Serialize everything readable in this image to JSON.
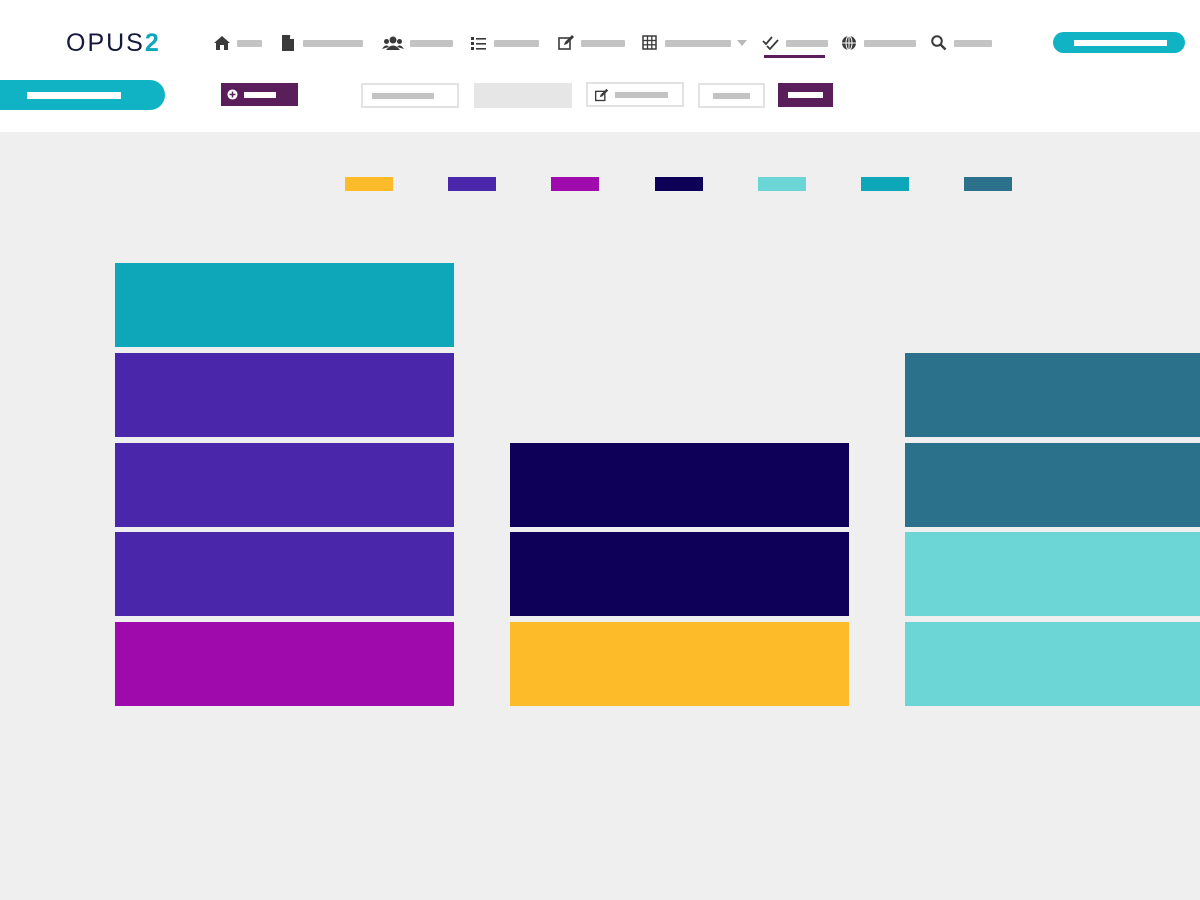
{
  "app": {
    "logo_text": "OPUS",
    "logo_suffix": "2"
  },
  "nav": {
    "items": [
      {
        "icon": "home-icon",
        "label": ""
      },
      {
        "icon": "document-icon",
        "label": ""
      },
      {
        "icon": "users-icon",
        "label": ""
      },
      {
        "icon": "list-icon",
        "label": ""
      },
      {
        "icon": "edit-icon",
        "label": ""
      },
      {
        "icon": "grid-icon",
        "label": ""
      },
      {
        "icon": "checkmarks-icon",
        "label": "",
        "active": true
      },
      {
        "icon": "globe-icon",
        "label": ""
      },
      {
        "icon": "search-icon",
        "label": ""
      }
    ]
  },
  "colors": {
    "accent": "#10b3c4",
    "brand_purple": "#5a1e5b",
    "logo_dark": "#14193d"
  },
  "legend": [
    {
      "color": "#fdbb2a"
    },
    {
      "color": "#4a26aa"
    },
    {
      "color": "#9e0aab"
    },
    {
      "color": "#0e0058"
    },
    {
      "color": "#6cd6d7"
    },
    {
      "color": "#0ea7b9"
    },
    {
      "color": "#2b718b"
    }
  ],
  "board": {
    "columns": [
      {
        "blocks": [
          "#0ea7b9",
          "#4a26aa",
          "#4a26aa",
          "#4a26aa",
          "#9e0aab"
        ]
      },
      {
        "blocks": [
          "#0e0058",
          "#0e0058",
          "#fdbb2a"
        ]
      },
      {
        "blocks": [
          "#2b718b",
          "#2b718b",
          "#6cd6d7",
          "#6cd6d7"
        ]
      }
    ]
  }
}
